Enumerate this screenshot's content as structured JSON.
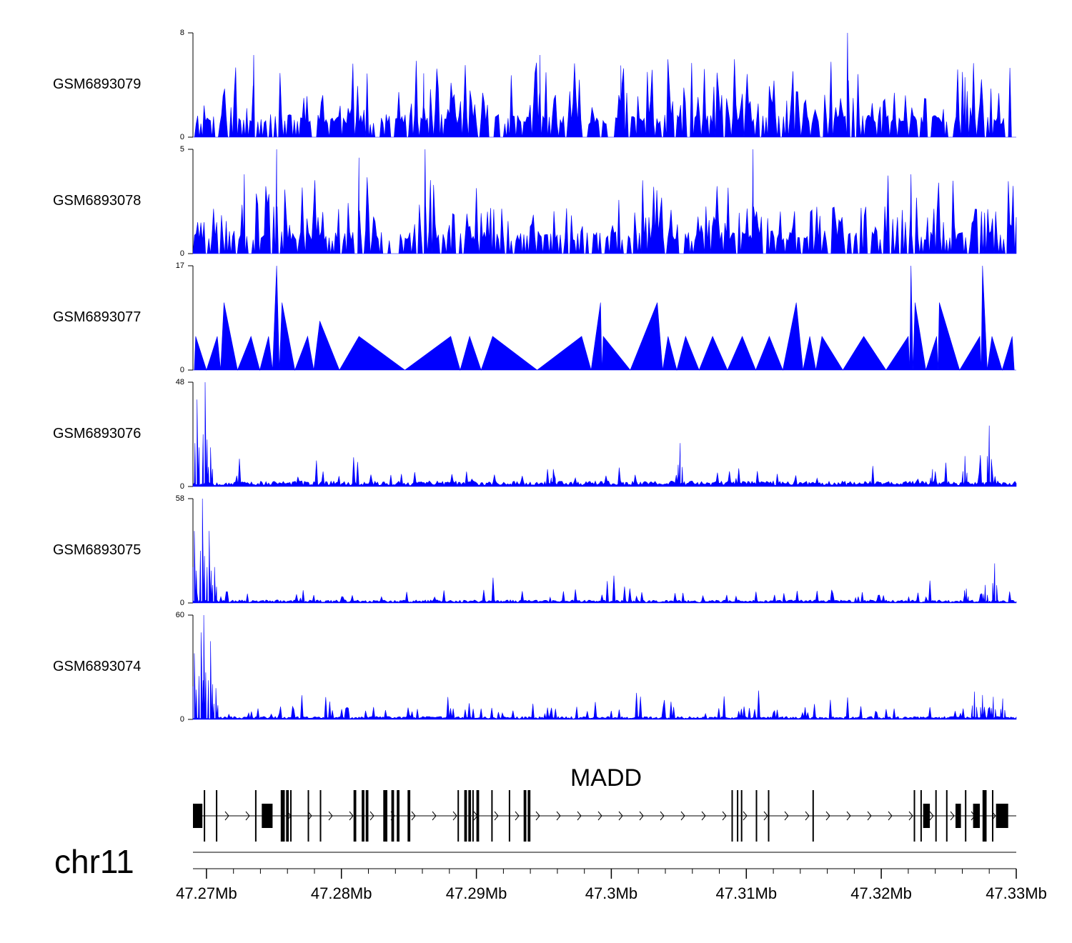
{
  "chart_data": {
    "type": "area",
    "genome": {
      "chromosome": "chr11",
      "xlim": [
        47.269,
        47.33
      ],
      "unit": "Mb"
    },
    "x_ticks": [
      {
        "value": 47.27,
        "label": "47.27Mb"
      },
      {
        "value": 47.28,
        "label": "47.28Mb"
      },
      {
        "value": 47.29,
        "label": "47.29Mb"
      },
      {
        "value": 47.3,
        "label": "47.3Mb"
      },
      {
        "value": 47.31,
        "label": "47.31Mb"
      },
      {
        "value": 47.32,
        "label": "47.32Mb"
      },
      {
        "value": 47.33,
        "label": "47.33Mb"
      }
    ],
    "tracks": [
      {
        "name": "GSM6893079",
        "ymin": 0,
        "ymax": 8,
        "ymin_label": "0",
        "ymax_label": "8",
        "color": "#0000ff",
        "style": "sparse",
        "seed": 11,
        "base": 0.2,
        "peaks": [
          [
            47.2735,
            6.3
          ],
          [
            47.3175,
            8.0
          ],
          [
            47.2947,
            6.3
          ],
          [
            47.3007,
            5.5
          ],
          [
            47.2861,
            4.9
          ],
          [
            47.3262,
            4.6
          ]
        ]
      },
      {
        "name": "GSM6893078",
        "ymin": 0,
        "ymax": 5,
        "ymin_label": "0",
        "ymax_label": "5",
        "color": "#0000ff",
        "style": "sparse",
        "seed": 23,
        "base": 0.2,
        "peaks": [
          [
            47.2752,
            5.0
          ],
          [
            47.2862,
            5.0
          ],
          [
            47.3105,
            5.0
          ],
          [
            47.2813,
            4.6
          ],
          [
            47.2728,
            3.8
          ],
          [
            47.3222,
            3.8
          ]
        ]
      },
      {
        "name": "GSM6893077",
        "ymin": 0,
        "ymax": 17,
        "ymin_label": "0",
        "ymax_label": "17",
        "color": "#0000ff",
        "style": "triangles",
        "seed": 37,
        "base": 0.5,
        "peaks": [
          [
            47.2692,
            5.5
          ],
          [
            47.2708,
            5.5
          ],
          [
            47.2713,
            11.0
          ],
          [
            47.2733,
            5.5
          ],
          [
            47.2746,
            5.5
          ],
          [
            47.2752,
            17.0
          ],
          [
            47.2756,
            11.0
          ],
          [
            47.2775,
            5.5
          ],
          [
            47.2784,
            8.0
          ],
          [
            47.2813,
            5.5
          ],
          [
            47.2881,
            5.5
          ],
          [
            47.2895,
            5.5
          ],
          [
            47.2912,
            5.5
          ],
          [
            47.2978,
            5.5
          ],
          [
            47.2992,
            11.0
          ],
          [
            47.2994,
            5.5
          ],
          [
            47.3034,
            11.0
          ],
          [
            47.3042,
            5.5
          ],
          [
            47.3055,
            5.5
          ],
          [
            47.3075,
            5.5
          ],
          [
            47.3097,
            5.5
          ],
          [
            47.3117,
            5.5
          ],
          [
            47.3137,
            11.0
          ],
          [
            47.3147,
            5.5
          ],
          [
            47.3156,
            5.5
          ],
          [
            47.3187,
            5.5
          ],
          [
            47.322,
            5.5
          ],
          [
            47.3222,
            17.0
          ],
          [
            47.3225,
            11.0
          ],
          [
            47.3241,
            5.5
          ],
          [
            47.3243,
            11.0
          ],
          [
            47.3273,
            5.5
          ],
          [
            47.3275,
            17.0
          ],
          [
            47.3282,
            5.5
          ],
          [
            47.3297,
            5.5
          ]
        ]
      },
      {
        "name": "GSM6893076",
        "ymin": 0,
        "ymax": 48,
        "ymin_label": "0",
        "ymax_label": "48",
        "color": "#0000ff",
        "style": "dense",
        "seed": 53,
        "base": 1.5,
        "peaks": [
          [
            47.2693,
            40
          ],
          [
            47.2699,
            48
          ],
          [
            47.2703,
            18
          ],
          [
            47.3051,
            20
          ],
          [
            47.328,
            28
          ],
          [
            47.3262,
            14
          ],
          [
            47.3238,
            8
          ],
          [
            47.2957,
            8
          ]
        ]
      },
      {
        "name": "GSM6893075",
        "ymin": 0,
        "ymax": 58,
        "ymin_label": "0",
        "ymax_label": "58",
        "color": "#0000ff",
        "style": "dense",
        "seed": 71,
        "base": 1.0,
        "peaks": [
          [
            47.2691,
            40
          ],
          [
            47.2697,
            58
          ],
          [
            47.2702,
            40
          ],
          [
            47.2706,
            20
          ],
          [
            47.3284,
            22
          ],
          [
            47.3277,
            10
          ],
          [
            47.3263,
            8
          ]
        ]
      },
      {
        "name": "GSM6893074",
        "ymin": 0,
        "ymax": 60,
        "ymin_label": "0",
        "ymax_label": "60",
        "color": "#0000ff",
        "style": "dense",
        "seed": 97,
        "base": 1.0,
        "peaks": [
          [
            47.2691,
            38
          ],
          [
            47.2696,
            50
          ],
          [
            47.2698,
            60
          ],
          [
            47.2703,
            45
          ],
          [
            47.2707,
            18
          ],
          [
            47.3269,
            16
          ],
          [
            47.3275,
            14
          ],
          [
            47.3283,
            13
          ],
          [
            47.329,
            12
          ]
        ]
      }
    ],
    "gene": {
      "name": "MADD",
      "strand": "+",
      "start": 47.269,
      "end": 47.33,
      "exons": [
        [
          47.269,
          47.2697
        ],
        [
          47.2698,
          47.2699
        ],
        [
          47.2707,
          47.2708
        ],
        [
          47.2736,
          47.2737
        ],
        [
          47.2741,
          47.2749
        ],
        [
          47.2755,
          47.2758
        ],
        [
          47.2759,
          47.2761
        ],
        [
          47.2762,
          47.2763
        ],
        [
          47.2775,
          47.2776
        ],
        [
          47.2784,
          47.2785
        ],
        [
          47.2809,
          47.2811
        ],
        [
          47.2815,
          47.2817
        ],
        [
          47.2818,
          47.282
        ],
        [
          47.2831,
          47.2834
        ],
        [
          47.2837,
          47.2839
        ],
        [
          47.2841,
          47.2843
        ],
        [
          47.2849,
          47.2851
        ],
        [
          47.2886,
          47.2887
        ],
        [
          47.2891,
          47.2893
        ],
        [
          47.2894,
          47.2896
        ],
        [
          47.2897,
          47.2898
        ],
        [
          47.29,
          47.2902
        ],
        [
          47.2911,
          47.2912
        ],
        [
          47.2924,
          47.2925
        ],
        [
          47.2935,
          47.2937
        ],
        [
          47.2938,
          47.294
        ],
        [
          47.3089,
          47.309
        ],
        [
          47.3093,
          47.3094
        ],
        [
          47.3096,
          47.3097
        ],
        [
          47.3107,
          47.3108
        ],
        [
          47.3116,
          47.3117
        ],
        [
          47.3149,
          47.315
        ],
        [
          47.3224,
          47.3225
        ],
        [
          47.3229,
          47.323
        ],
        [
          47.3231,
          47.3236
        ],
        [
          47.324,
          47.3241
        ],
        [
          47.3248,
          47.3249
        ],
        [
          47.3255,
          47.3259
        ],
        [
          47.3262,
          47.3263
        ],
        [
          47.3268,
          47.3273
        ],
        [
          47.3275,
          47.3278
        ],
        [
          47.3282,
          47.3283
        ],
        [
          47.3285,
          47.3294
        ]
      ]
    }
  }
}
